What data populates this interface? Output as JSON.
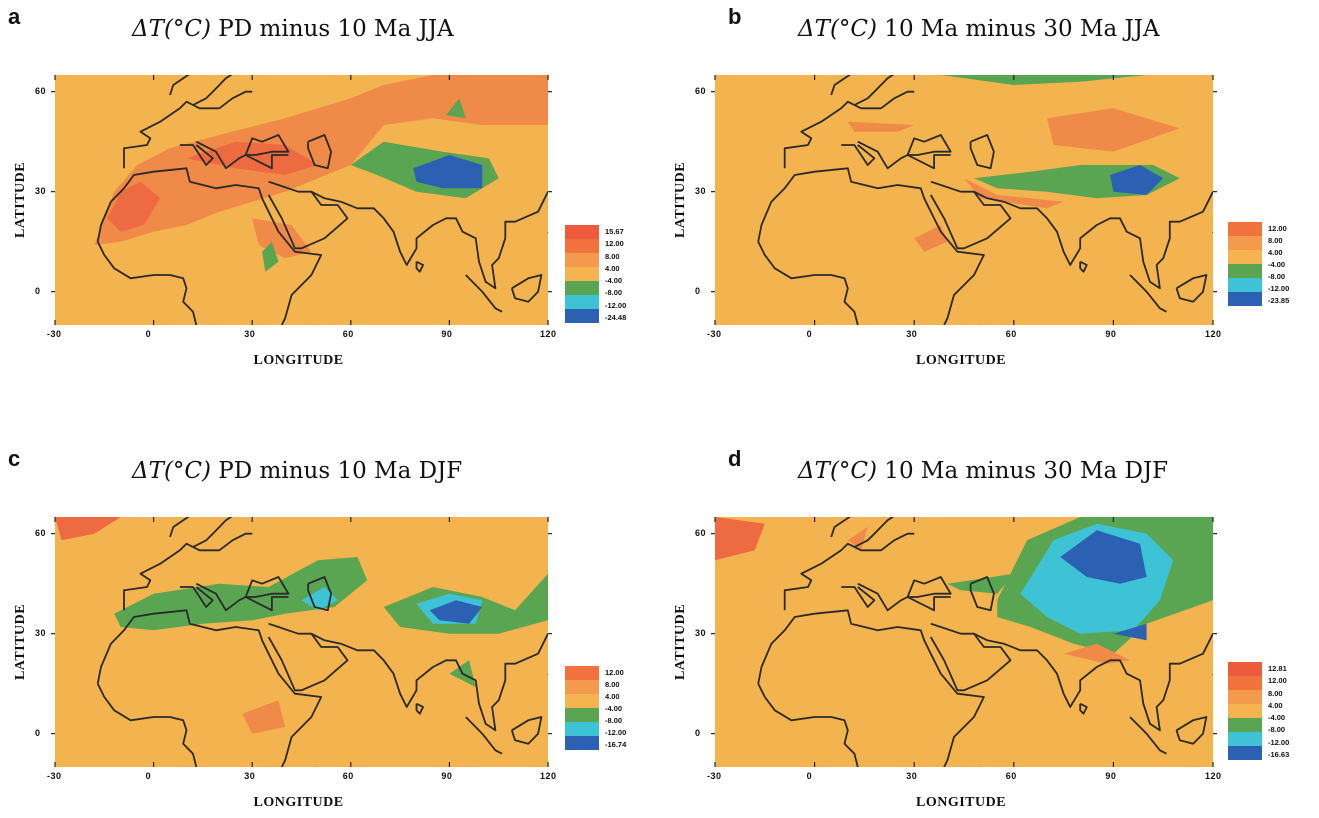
{
  "figure": {
    "panels": [
      {
        "letter": "a",
        "title_math": "ΔT(°C)",
        "title_text": " PD minus 10 Ma JJA",
        "xlabel": "LONGITUDE",
        "ylabel": "LATITUDE",
        "xticks": [
          "-30",
          "0",
          "30",
          "60",
          "90",
          "120"
        ],
        "yticks": [
          "0",
          "30",
          "60"
        ],
        "legend": [
          "15.67",
          "12.00",
          "8.00",
          "4.00",
          "-4.00",
          "-8.00",
          "-12.00",
          "-24.48"
        ],
        "legend_colors": [
          "#ee5a3c",
          "#f2723e",
          "#f49a4c",
          "#f5b44f",
          "#5aa552",
          "#3ec3d6",
          "#2b60b3"
        ]
      },
      {
        "letter": "b",
        "title_math": "ΔT(°C)",
        "title_text": " 10 Ma minus 30 Ma JJA",
        "xlabel": "LONGITUDE",
        "ylabel": "LATITUDE",
        "xticks": [
          "-30",
          "0",
          "30",
          "60",
          "90",
          "120"
        ],
        "yticks": [
          "0",
          "30",
          "60"
        ],
        "legend": [
          "12.00",
          "8.00",
          "4.00",
          "-4.00",
          "-8.00",
          "-12.00",
          "-23.85"
        ],
        "legend_colors": [
          "#f2723e",
          "#f49a4c",
          "#f5b44f",
          "#5aa552",
          "#3ec3d6",
          "#2b60b3"
        ]
      },
      {
        "letter": "c",
        "title_math": "ΔT(°C)",
        "title_text": " PD minus 10 Ma DJF",
        "xlabel": "LONGITUDE",
        "ylabel": "LATITUDE",
        "xticks": [
          "-30",
          "0",
          "30",
          "60",
          "90",
          "120"
        ],
        "yticks": [
          "0",
          "30",
          "60"
        ],
        "legend": [
          "12.00",
          "8.00",
          "4.00",
          "-4.00",
          "-8.00",
          "-12.00",
          "-16.74"
        ],
        "legend_colors": [
          "#f2723e",
          "#f49a4c",
          "#f5b44f",
          "#5aa552",
          "#3ec3d6",
          "#2b60b3"
        ]
      },
      {
        "letter": "d",
        "title_math": "ΔT(°C)",
        "title_text": " 10 Ma minus 30 Ma DJF",
        "xlabel": "LONGITUDE",
        "ylabel": "LATITUDE",
        "xticks": [
          "-30",
          "0",
          "30",
          "60",
          "90",
          "120"
        ],
        "yticks": [
          "0",
          "30",
          "60"
        ],
        "legend": [
          "12.81",
          "12.00",
          "8.00",
          "4.00",
          "-4.00",
          "-8.00",
          "-12.00",
          "-16.63"
        ],
        "legend_colors": [
          "#ee5a3c",
          "#f2723e",
          "#f49a4c",
          "#f5b44f",
          "#5aa552",
          "#3ec3d6",
          "#2b60b3"
        ]
      }
    ],
    "colors": {
      "background_field": "#f3b34f",
      "warm": "#f08a48",
      "warm_strong": "#ee6a40",
      "cool": "#5aa552",
      "cooler": "#3ec3d6",
      "coldest": "#2b60b3",
      "coastline": "#2a2a2a"
    }
  }
}
